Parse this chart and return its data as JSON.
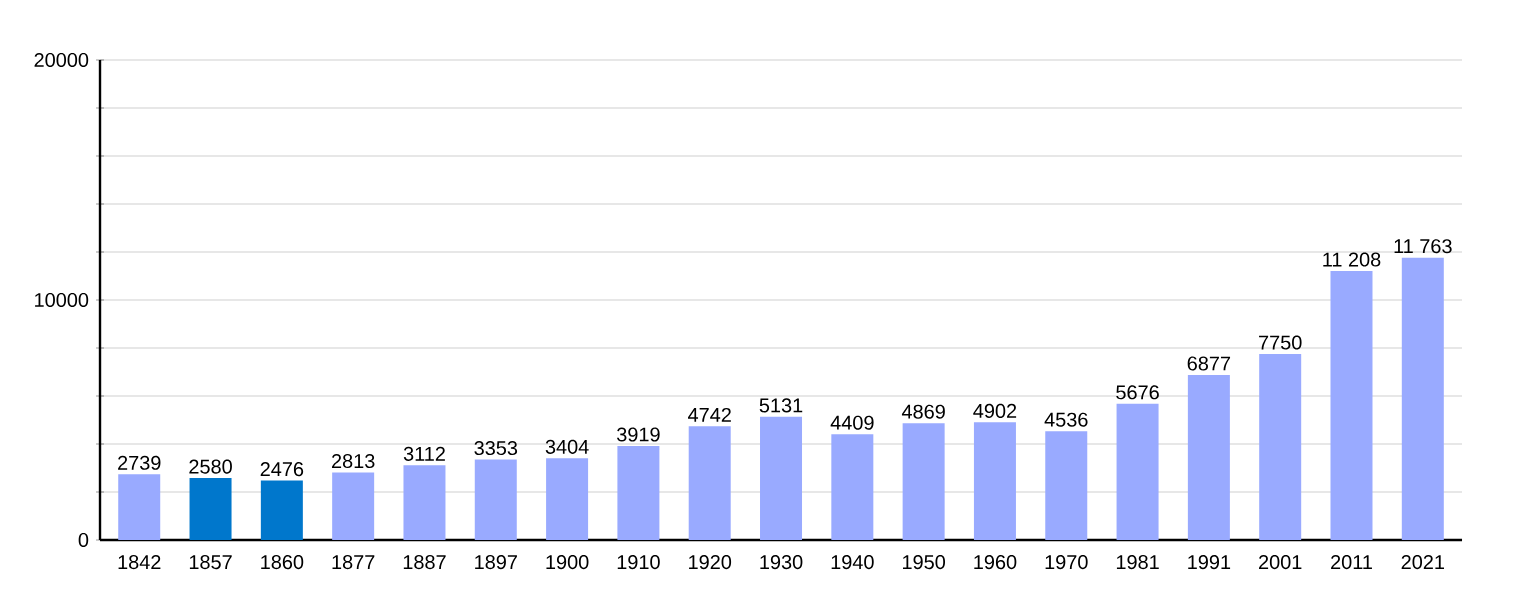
{
  "chart_data": {
    "type": "bar",
    "categories": [
      "1842",
      "1857",
      "1860",
      "1877",
      "1887",
      "1897",
      "1900",
      "1910",
      "1920",
      "1930",
      "1940",
      "1950",
      "1960",
      "1970",
      "1981",
      "1991",
      "2001",
      "2011",
      "2021"
    ],
    "values": [
      2739,
      2580,
      2476,
      2813,
      3112,
      3353,
      3404,
      3919,
      4742,
      5131,
      4409,
      4869,
      4902,
      4536,
      5676,
      6877,
      7750,
      11208,
      11763
    ],
    "value_labels": [
      "2739",
      "2580",
      "2476",
      "2813",
      "3112",
      "3353",
      "3404",
      "3919",
      "4742",
      "5131",
      "4409",
      "4869",
      "4902",
      "4536",
      "5676",
      "6877",
      "7750",
      "11 208",
      "11 763"
    ],
    "colors": [
      "#99aaff",
      "#0077cc",
      "#0077cc",
      "#99aaff",
      "#99aaff",
      "#99aaff",
      "#99aaff",
      "#99aaff",
      "#99aaff",
      "#99aaff",
      "#99aaff",
      "#99aaff",
      "#99aaff",
      "#99aaff",
      "#99aaff",
      "#99aaff",
      "#99aaff",
      "#99aaff",
      "#99aaff"
    ],
    "ylim": [
      0,
      20000
    ],
    "yticks": [
      0,
      {
        "value": 2000,
        "label": null
      },
      {
        "value": 4000,
        "label": null
      },
      {
        "value": 6000,
        "label": null
      },
      {
        "value": 8000,
        "label": null
      },
      10000,
      {
        "value": 12000,
        "label": null
      },
      {
        "value": 14000,
        "label": null
      },
      {
        "value": 16000,
        "label": null
      },
      {
        "value": 18000,
        "label": null
      },
      20000
    ],
    "grid": true
  }
}
